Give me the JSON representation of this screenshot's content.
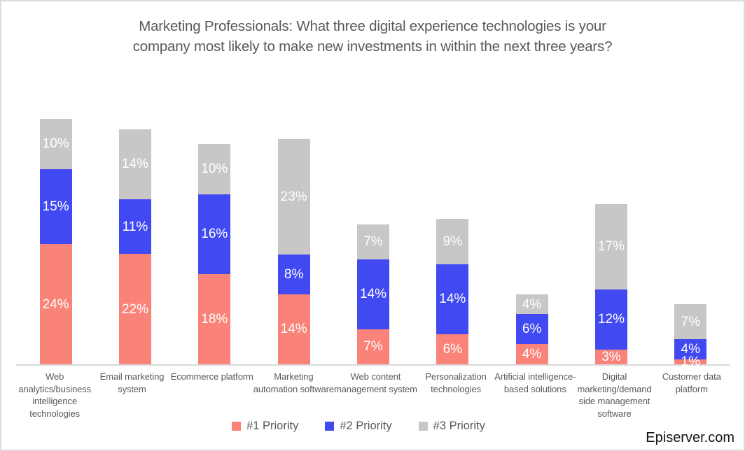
{
  "chart_data": {
    "type": "bar",
    "stacked": true,
    "title": "Marketing Professionals: What three digital experience technologies is your\ncompany most likely to make new investments in within the next three years?",
    "categories": [
      "Web\nanalytics/business\nintelligence\ntechnologies",
      "Email marketing\nsystem",
      "Ecommerce platform",
      "Marketing\nautomation software",
      "Web content\nmanagement system",
      "Personalization\ntechnologies",
      "Artificial intelligence-\nbased solutions",
      "Digital\nmarketing/demand\nside management\nsoftware",
      "Customer data\nplatform"
    ],
    "series": [
      {
        "name": "#1 Priority",
        "color": "#FA8379",
        "values": [
          24,
          22,
          18,
          14,
          7,
          6,
          4,
          3,
          1
        ]
      },
      {
        "name": "#2 Priority",
        "color": "#4149F2",
        "values": [
          15,
          11,
          16,
          8,
          14,
          14,
          6,
          12,
          4
        ]
      },
      {
        "name": "#3 Priority",
        "color": "#C8C7C5",
        "values": [
          10,
          14,
          10,
          23,
          7,
          9,
          4,
          17,
          7
        ]
      }
    ],
    "value_suffix": "%",
    "xlabel": "",
    "ylabel": "",
    "grid": false,
    "legend_position": "bottom",
    "axis_line_color": "#D8D8D8",
    "text_color": "#595959",
    "value_label_color": "#FFFFFF"
  },
  "attribution": "Episerver.com"
}
